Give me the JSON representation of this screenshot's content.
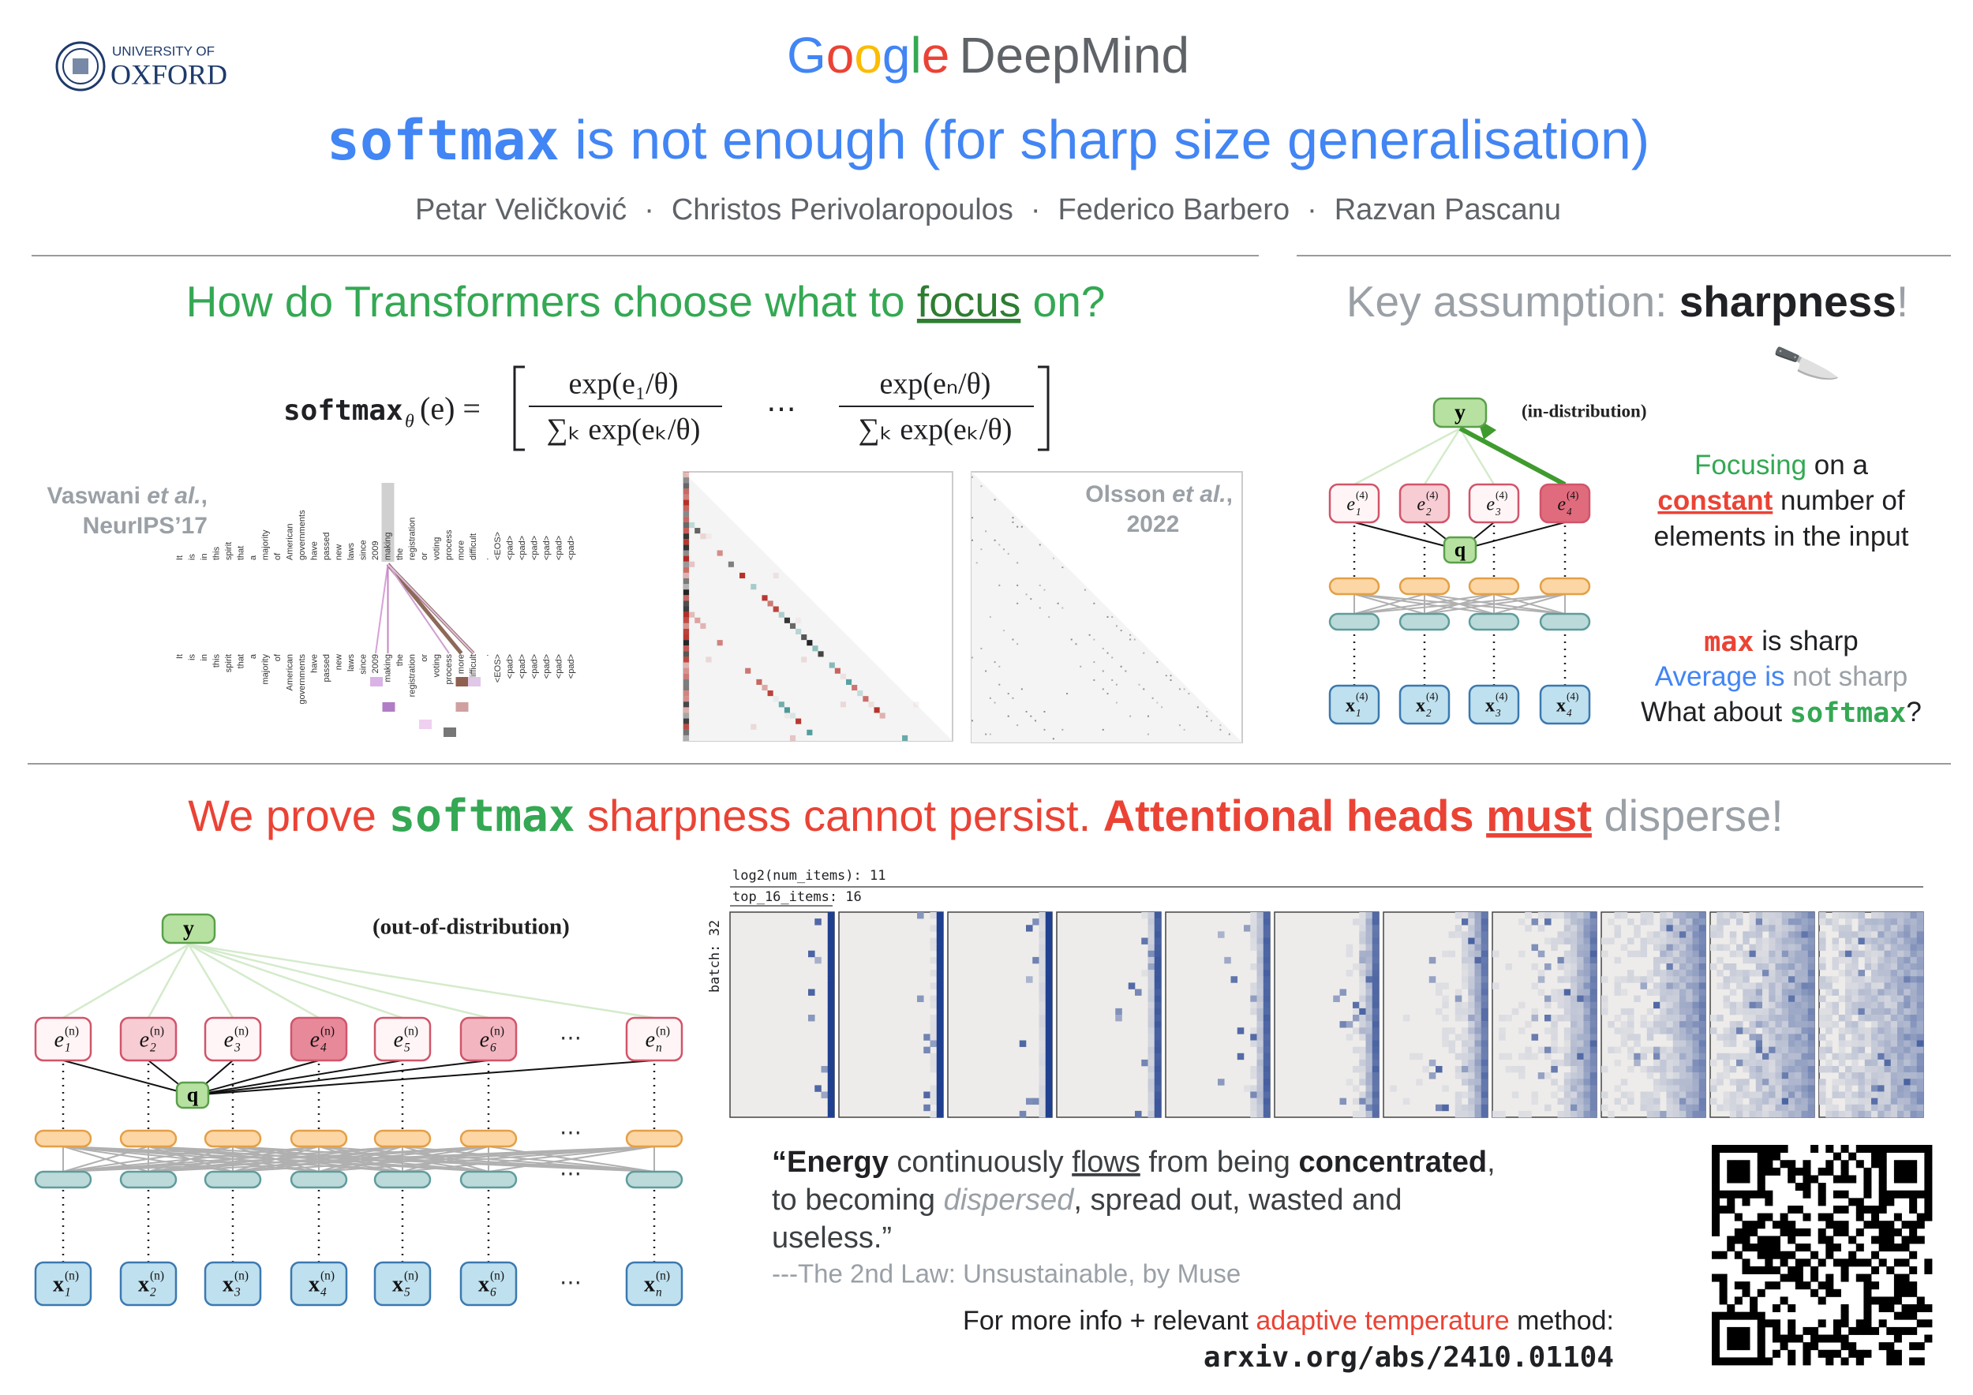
{
  "header": {
    "university_small": "UNIVERSITY OF",
    "university": "OXFORD",
    "brand": [
      "Google",
      "DeepMind"
    ],
    "title": [
      "softmax",
      " is not enough (for sharp size generalisation)"
    ],
    "authors": [
      "Petar Veličković",
      "Christos Perivolaropoulos",
      "Federico Barbero",
      "Razvan Pascanu"
    ],
    "separator": "·"
  },
  "focus_section": {
    "heading": [
      "How do Transformers choose what to ",
      "focus",
      " on?"
    ],
    "formula": {
      "lhs": "softmax",
      "sub": "θ",
      "arg": "(e) =",
      "num1": "exp(e₁/θ)",
      "den1": "∑ₖ exp(eₖ/θ)",
      "dots": "⋯",
      "num2": "exp(eₙ/θ)",
      "den2": "∑ₖ exp(eₖ/θ)"
    },
    "citation_left": [
      "Vaswani ",
      "et al.",
      ",",
      "NeurIPS’17"
    ],
    "citation_right": [
      "Olsson ",
      "et al.",
      ",",
      "2022"
    ],
    "tokens": [
      "It",
      "is",
      "in",
      "this",
      "spirit",
      "that",
      "a",
      "majority",
      "of",
      "American",
      "governments",
      "have",
      "passed",
      "new",
      "laws",
      "since",
      "2009",
      "making",
      "the",
      "registration",
      "or",
      "voting",
      "process",
      "more",
      "difficult",
      ".",
      "<EOS>",
      "<pad>",
      "<pad>",
      "<pad>",
      "<pad>",
      "<pad>",
      "<pad>"
    ]
  },
  "sharpness_section": {
    "heading": [
      "Key assumption: ",
      "sharpness",
      "!"
    ],
    "icon": "🔪",
    "diagram": {
      "output": "y",
      "label": "(in-distribution)",
      "query": "q",
      "energies": [
        {
          "base": "e",
          "sub": "1",
          "sup": "(4)"
        },
        {
          "base": "e",
          "sub": "2",
          "sup": "(4)"
        },
        {
          "base": "e",
          "sub": "3",
          "sup": "(4)"
        },
        {
          "base": "e",
          "sub": "4",
          "sup": "(4)"
        }
      ],
      "inputs": [
        {
          "base": "x",
          "sub": "1",
          "sup": "(4)"
        },
        {
          "base": "x",
          "sub": "2",
          "sup": "(4)"
        },
        {
          "base": "x",
          "sub": "3",
          "sup": "(4)"
        },
        {
          "base": "x",
          "sub": "4",
          "sup": "(4)"
        }
      ]
    },
    "focus_text": [
      "Focusing",
      " on a",
      "constant",
      " number of",
      "elements in the input"
    ],
    "max_line": [
      "max",
      " is sharp"
    ],
    "avg_line": [
      "Average is",
      " not sharp"
    ],
    "softmax_line": [
      "What about ",
      "softmax",
      "?"
    ]
  },
  "dispersion_section": {
    "heading": [
      "We prove ",
      "softmax",
      " sharpness cannot persist. ",
      "Attentional heads ",
      "must",
      " disperse!"
    ],
    "diagram": {
      "output": "y",
      "label": "(out-of-distribution)",
      "query": "q",
      "ellipsis": "⋯",
      "energies": [
        {
          "base": "e",
          "sub": "1",
          "sup": "(n)"
        },
        {
          "base": "e",
          "sub": "2",
          "sup": "(n)"
        },
        {
          "base": "e",
          "sub": "3",
          "sup": "(n)"
        },
        {
          "base": "e",
          "sub": "4",
          "sup": "(n)"
        },
        {
          "base": "e",
          "sub": "5",
          "sup": "(n)"
        },
        {
          "base": "e",
          "sub": "6",
          "sup": "(n)"
        },
        {
          "base": "e",
          "sub": "n",
          "sup": "(n)"
        }
      ],
      "inputs": [
        {
          "base": "x",
          "sub": "1",
          "sup": "(n)"
        },
        {
          "base": "x",
          "sub": "2",
          "sup": "(n)"
        },
        {
          "base": "x",
          "sub": "3",
          "sup": "(n)"
        },
        {
          "base": "x",
          "sub": "4",
          "sup": "(n)"
        },
        {
          "base": "x",
          "sub": "5",
          "sup": "(n)"
        },
        {
          "base": "x",
          "sub": "6",
          "sup": "(n)"
        },
        {
          "base": "x",
          "sub": "n",
          "sup": "(n)"
        }
      ]
    },
    "panel": {
      "labels": [
        "log2(num_items): 11",
        "top_16_items: 16"
      ],
      "axis_label": "batch: 32"
    },
    "quote": [
      [
        "“Energy",
        " continuously ",
        "flows",
        " from being ",
        "concentrated",
        ","
      ],
      [
        "to becoming ",
        "dispersed",
        ", spread out, wasted and"
      ],
      [
        "useless.”"
      ]
    ],
    "attribution": "---The 2nd Law: Unsustainable, by Muse",
    "more_info": [
      "For more info + relevant ",
      "adaptive temperature",
      " method:"
    ],
    "link": "arxiv.org/abs/2410.01104"
  }
}
